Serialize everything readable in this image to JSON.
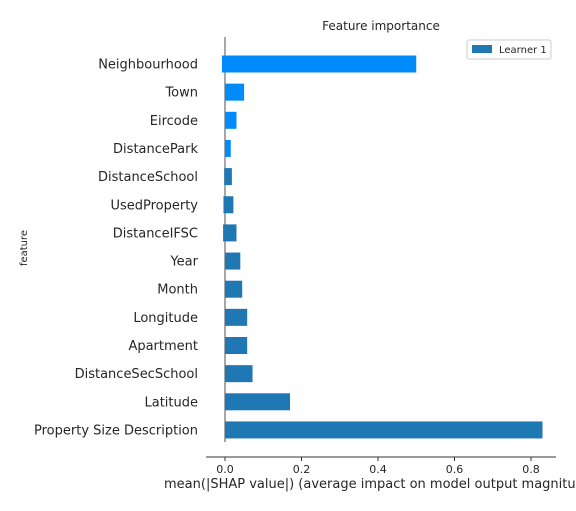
{
  "chart_data": {
    "type": "bar",
    "orientation": "horizontal",
    "title": "Feature importance",
    "xlabel": "mean(|SHAP value|) (average impact on model output magnitude)",
    "ylabel": "feature",
    "xlim": [
      -0.05,
      0.87
    ],
    "x_ticks": [
      0.0,
      0.2,
      0.4,
      0.6,
      0.8
    ],
    "x_tick_labels": [
      "0.0",
      "0.2",
      "0.4",
      "0.6",
      "0.8"
    ],
    "legend_position": "top-right",
    "grid": false,
    "categories": [
      "Neighbourhood",
      "Town",
      "Eircode",
      "DistancePark",
      "DistanceSchool",
      "UsedProperty",
      "DistanceIFSC",
      "Year",
      "Month",
      "Longitude",
      "Apartment",
      "DistanceSecSchool",
      "Latitude",
      "Property Size Description"
    ],
    "series": [
      {
        "name": "Learner 1",
        "color": "#1f77b4",
        "values": [
          0.5,
          0.05,
          0.03,
          0.015,
          0.018,
          0.022,
          0.03,
          0.04,
          0.045,
          0.058,
          0.058,
          0.072,
          0.17,
          0.83
        ],
        "lower_values": [
          -0.008,
          0,
          0,
          0,
          -0.002,
          -0.004,
          -0.005,
          0,
          0,
          0,
          0,
          0,
          0,
          0
        ],
        "highlighted_color": "#008bfb",
        "highlighted": [
          true,
          true,
          true,
          true,
          false,
          false,
          false,
          false,
          false,
          false,
          false,
          false,
          false,
          false
        ]
      }
    ]
  }
}
